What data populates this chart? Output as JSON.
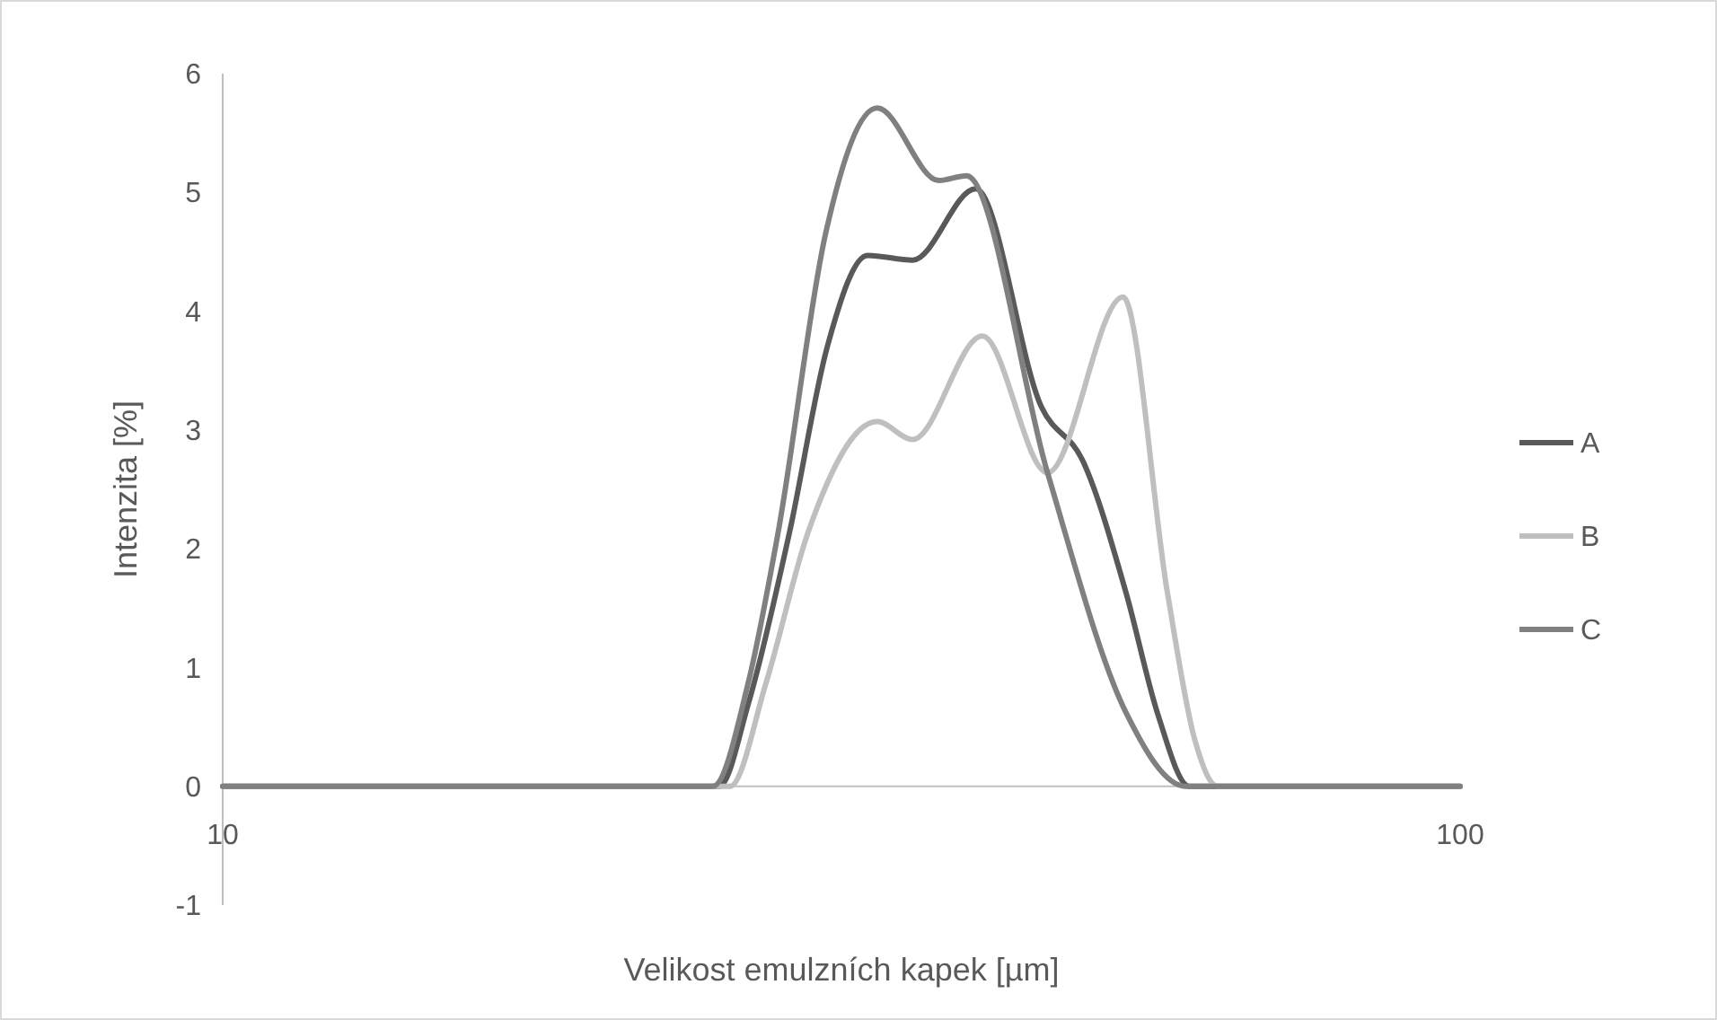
{
  "chart_data": {
    "type": "line",
    "xlabel": "Velikost emulzních kapek [µm]",
    "ylabel": "Intenzita [%]",
    "log": "x",
    "xlim": [
      10,
      100
    ],
    "xticks": [
      10,
      100
    ],
    "ylim": [
      -1,
      6
    ],
    "yticks": [
      -1,
      0,
      1,
      2,
      3,
      4,
      5,
      6
    ],
    "grid": false,
    "legend": "right",
    "marker": "none",
    "line_style": "solid",
    "series": [
      {
        "name": "A",
        "color": "#595959",
        "x": [
          10,
          25.2,
          26.6,
          28.7,
          30.8,
          33.2,
          36.1,
          40.6,
          45.9,
          49.6,
          53.7,
          57,
          60.4,
          100
        ],
        "values": [
          0,
          0,
          0.7,
          2.13,
          3.7,
          4.47,
          4.43,
          5.03,
          3.19,
          2.73,
          1.63,
          0.6,
          0,
          0
        ]
      },
      {
        "name": "B",
        "color": "#bfbfbf",
        "x": [
          10,
          25.7,
          27.5,
          29.7,
          33.8,
          36.1,
          41.1,
          46.4,
          53.4,
          58,
          61,
          63.7,
          100
        ],
        "values": [
          0,
          0,
          0.88,
          2.13,
          3.07,
          2.92,
          3.79,
          2.64,
          4.12,
          1.63,
          0.4,
          0,
          0
        ]
      },
      {
        "name": "C",
        "color": "#808080",
        "x": [
          10,
          24.9,
          26.6,
          28.1,
          30.7,
          33.8,
          37.9,
          39.9,
          46.4,
          53.7,
          60,
          100
        ],
        "values": [
          0,
          0,
          0.88,
          2.13,
          4.65,
          5.71,
          5.1,
          5.14,
          2.64,
          0.62,
          0,
          0
        ]
      }
    ]
  }
}
